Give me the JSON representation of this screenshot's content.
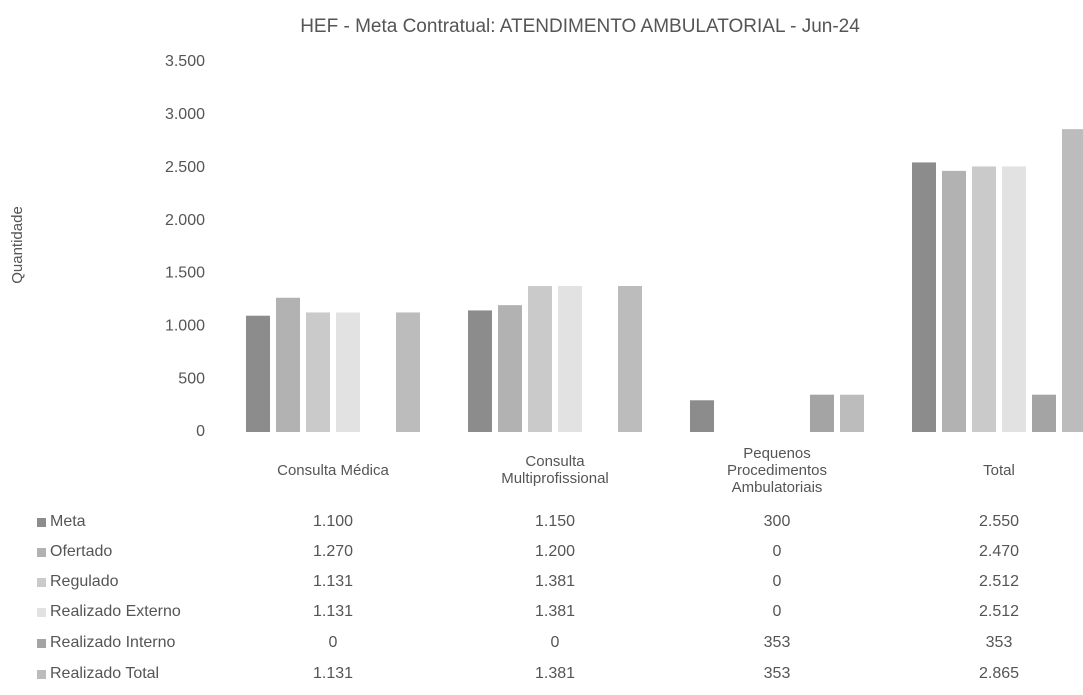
{
  "chart_data": {
    "type": "bar",
    "title": "HEF - Meta Contratual: ATENDIMENTO AMBULATORIAL - Jun-24",
    "y_label": "Quantidade",
    "categories": [
      "Consulta Médica",
      "Consulta Multiprofissional",
      "Pequenos Procedimentos Ambulatoriais",
      "Total"
    ],
    "series": [
      {
        "name": "Meta",
        "color": "#8c8c8c",
        "values": [
          1100,
          1150,
          300,
          2550
        ],
        "value_labels": [
          "1.100",
          "1.150",
          "300",
          "2.550"
        ]
      },
      {
        "name": "Ofertado",
        "color": "#b2b2b2",
        "values": [
          1270,
          1200,
          0,
          2470
        ],
        "value_labels": [
          "1.270",
          "1.200",
          "0",
          "2.470"
        ]
      },
      {
        "name": "Regulado",
        "color": "#cacaca",
        "values": [
          1131,
          1381,
          0,
          2512
        ],
        "value_labels": [
          "1.131",
          "1.381",
          "0",
          "2.512"
        ]
      },
      {
        "name": "Realizado Externo",
        "color": "#e2e2e2",
        "values": [
          1131,
          1381,
          0,
          2512
        ],
        "value_labels": [
          "1.131",
          "1.381",
          "0",
          "2.512"
        ]
      },
      {
        "name": "Realizado Interno",
        "color": "#a4a4a4",
        "values": [
          0,
          0,
          353,
          353
        ],
        "value_labels": [
          "0",
          "0",
          "353",
          "353"
        ]
      },
      {
        "name": "Realizado Total",
        "color": "#bcbcbc",
        "values": [
          1131,
          1381,
          353,
          2865
        ],
        "value_labels": [
          "1.131",
          "1.381",
          "353",
          "2.865"
        ]
      }
    ],
    "ylim": [
      0,
      3500
    ],
    "yticks": [
      0,
      500,
      {
        "value": 1000,
        "label": "1.000"
      },
      {
        "value": 1500,
        "label": "1.500"
      },
      {
        "value": 2000,
        "label": "2.000"
      },
      {
        "value": 2500,
        "label": "2.500"
      },
      {
        "value": 3000,
        "label": "3.000"
      },
      {
        "value": 3500,
        "label": "3.500"
      }
    ],
    "grid": false
  }
}
